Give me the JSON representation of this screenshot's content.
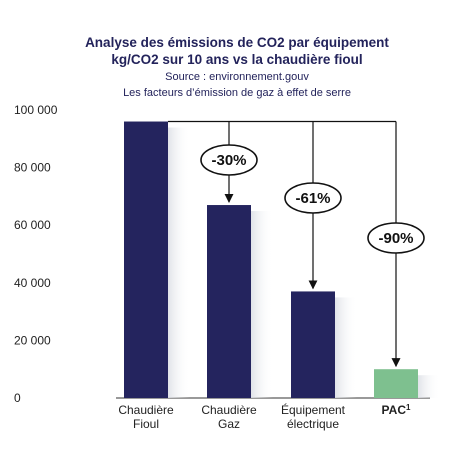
{
  "chart_data": {
    "type": "bar",
    "title_line1": "Analyse des émissions de CO2 par équipement",
    "title_line2": "kg/CO2 sur 10 ans vs la chaudière fioul",
    "source": "Source : environnement.gouv",
    "note": "Les facteurs d’émission de gaz à effet de serre",
    "categories": [
      {
        "line1": "Chaudière",
        "line2": "Fioul",
        "sup": ""
      },
      {
        "line1": "Chaudière",
        "line2": "Gaz",
        "sup": ""
      },
      {
        "line1": "Équipement",
        "line2": "électrique",
        "sup": ""
      },
      {
        "line1": "PAC",
        "line2": "",
        "sup": "1"
      }
    ],
    "values": [
      96000,
      67000,
      37000,
      10000
    ],
    "bar_colors": [
      "#24245e",
      "#24245e",
      "#24245e",
      "#7ec08f"
    ],
    "reductions": [
      "",
      "-30%",
      "-61%",
      "-90%"
    ],
    "ylim": [
      0,
      100000
    ],
    "yticks": [
      0,
      20000,
      40000,
      60000,
      80000,
      100000
    ],
    "ytick_labels": [
      "0",
      "20 000",
      "40 000",
      "60 000",
      "80 000",
      "100 000"
    ],
    "grid": false,
    "legend": "none"
  }
}
